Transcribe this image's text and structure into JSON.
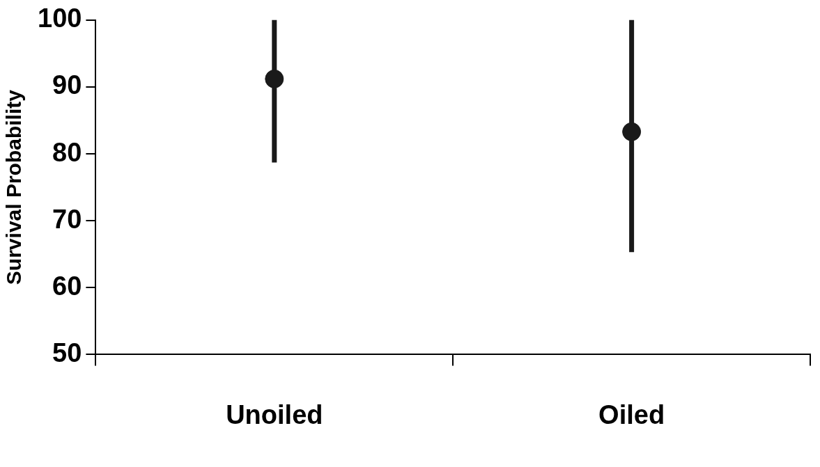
{
  "chart_data": {
    "type": "scatter",
    "ylabel": "Survival Probability",
    "categories": [
      "Unoiled",
      "Oiled"
    ],
    "series": [
      {
        "color": "#1a1a1a",
        "values": [
          91.2,
          83.3
        ],
        "errors": [
          [
            78.7,
            100
          ],
          [
            65.3,
            100
          ]
        ]
      }
    ],
    "ylim": [
      50,
      100
    ],
    "yticks": [
      50,
      60,
      70,
      80,
      90,
      100
    ],
    "grid": false,
    "legend": false,
    "marker": "circle"
  }
}
